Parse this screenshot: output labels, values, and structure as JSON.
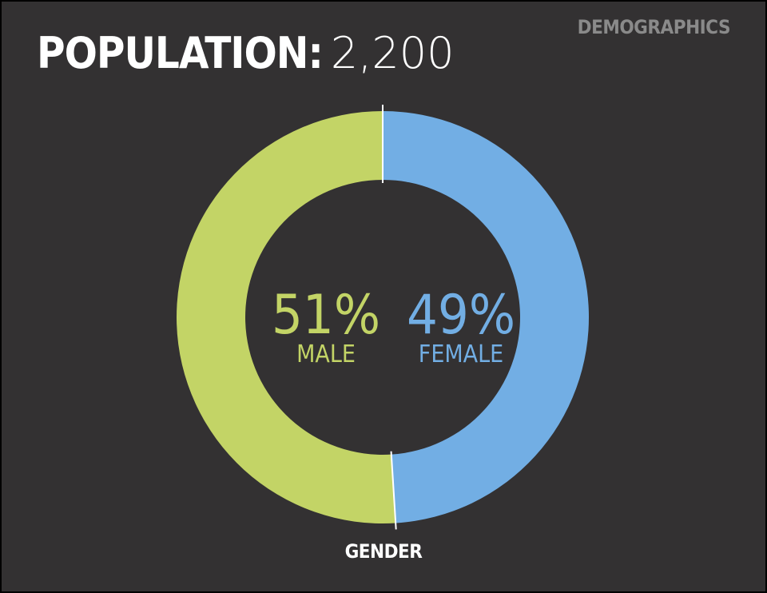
{
  "corner_label": "DEMOGRAPHICS",
  "headline": {
    "label": "POPULATION:",
    "value": "2,200"
  },
  "chart_data": {
    "type": "pie",
    "variant": "donut",
    "title": "GENDER",
    "total": 2200,
    "slices": [
      {
        "label": "MALE",
        "value": 51,
        "display": "51%",
        "color": "#c3d466"
      },
      {
        "label": "FEMALE",
        "value": 49,
        "display": "49%",
        "color": "#72aee4"
      }
    ],
    "separator_color": "#ffffff",
    "background_color": "#333132"
  }
}
